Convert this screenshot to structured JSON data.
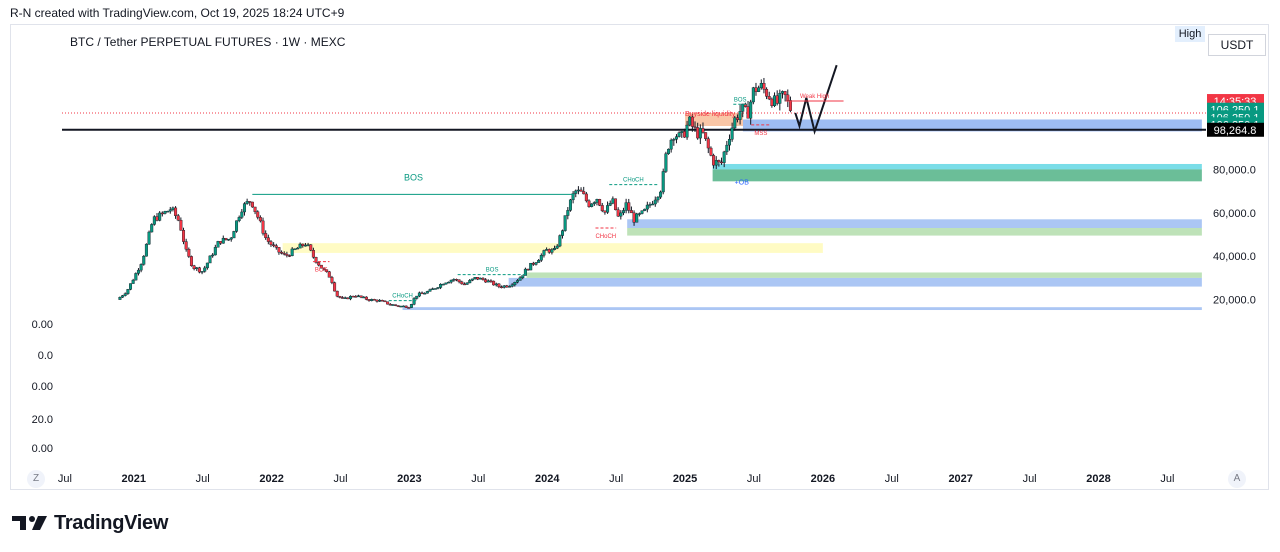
{
  "header": {
    "credit": "R-N created with TradingView.com, Oct 19, 2025 18:24 UTC+9"
  },
  "chart_title": "BTC / Tether PERPETUAL FUTURES · 1W · MEXC",
  "badges": {
    "high": "High",
    "currency": "USDT"
  },
  "brand": {
    "name": "TradingView"
  },
  "corner_buttons": {
    "left": "Z",
    "right": "A"
  },
  "colors": {
    "up": "#089981",
    "down": "#f23645",
    "wick": "#131722",
    "bos": "#089981",
    "bos_red": "#f23645",
    "zone_blue": "#9bbcf5",
    "zone_green": "#a8d8a0",
    "zone_yellow": "#fff9b0",
    "zone_teal": "#4dd2e0",
    "zone_dkgreen": "#3aa876",
    "zone_orange": "#f7b38a",
    "current_line": "#131722"
  },
  "chart_data": {
    "type": "candlestick",
    "x_ticks": [
      {
        "label": "Jul",
        "t": 2020.5
      },
      {
        "label": "2021",
        "t": 2021.0
      },
      {
        "label": "Jul",
        "t": 2021.5
      },
      {
        "label": "2022",
        "t": 2022.0
      },
      {
        "label": "Jul",
        "t": 2022.5
      },
      {
        "label": "2023",
        "t": 2023.0
      },
      {
        "label": "Jul",
        "t": 2023.5
      },
      {
        "label": "2024",
        "t": 2024.0
      },
      {
        "label": "Jul",
        "t": 2024.5
      },
      {
        "label": "2025",
        "t": 2025.0
      },
      {
        "label": "Jul",
        "t": 2025.5
      },
      {
        "label": "2026",
        "t": 2026.0
      },
      {
        "label": "Jul",
        "t": 2026.5
      },
      {
        "label": "2027",
        "t": 2027.0
      },
      {
        "label": "Jul",
        "t": 2027.5
      },
      {
        "label": "2028",
        "t": 2028.0
      },
      {
        "label": "Jul",
        "t": 2028.5
      }
    ],
    "y_ticks": [
      {
        "label": "80,000.0",
        "v": 80000
      },
      {
        "label": "60,000.0",
        "v": 60000
      },
      {
        "label": "40,000.0",
        "v": 40000
      },
      {
        "label": "20,000.0",
        "v": 20000
      }
    ],
    "left_labels": [
      "0.00",
      "0.0",
      "0.00",
      "20.0",
      "0.00"
    ],
    "price_tags": [
      {
        "label": "14:35:33",
        "color": "#f23645",
        "v": 111500
      },
      {
        "label": "106,250.1",
        "color": "#089981",
        "v": 107500
      },
      {
        "label": "106,250.1",
        "color": "#089981",
        "v": 104000
      },
      {
        "label": "106,250.1",
        "color": "#089981",
        "v": 100800
      },
      {
        "label": "98,264.8",
        "color": "#000000",
        "v": 98264.8
      }
    ],
    "price_path": [
      [
        2020.88,
        20000
      ],
      [
        2020.95,
        24000
      ],
      [
        2021.0,
        30000
      ],
      [
        2021.06,
        38000
      ],
      [
        2021.1,
        47000
      ],
      [
        2021.14,
        57000
      ],
      [
        2021.2,
        59000
      ],
      [
        2021.27,
        62000
      ],
      [
        2021.33,
        56000
      ],
      [
        2021.38,
        42000
      ],
      [
        2021.43,
        35000
      ],
      [
        2021.5,
        33000
      ],
      [
        2021.56,
        40000
      ],
      [
        2021.62,
        47000
      ],
      [
        2021.7,
        48000
      ],
      [
        2021.78,
        62000
      ],
      [
        2021.85,
        66000
      ],
      [
        2021.9,
        58000
      ],
      [
        2021.96,
        48000
      ],
      [
        2022.03,
        43000
      ],
      [
        2022.1,
        40000
      ],
      [
        2022.17,
        43000
      ],
      [
        2022.25,
        46000
      ],
      [
        2022.3,
        40000
      ],
      [
        2022.37,
        34000
      ],
      [
        2022.43,
        30000
      ],
      [
        2022.47,
        22000
      ],
      [
        2022.52,
        20000
      ],
      [
        2022.6,
        22000
      ],
      [
        2022.7,
        20000
      ],
      [
        2022.78,
        19500
      ],
      [
        2022.85,
        18000
      ],
      [
        2022.92,
        17000
      ],
      [
        2023.0,
        16800
      ],
      [
        2023.05,
        22000
      ],
      [
        2023.15,
        24000
      ],
      [
        2023.25,
        28000
      ],
      [
        2023.32,
        29500
      ],
      [
        2023.4,
        27000
      ],
      [
        2023.48,
        30000
      ],
      [
        2023.55,
        29000
      ],
      [
        2023.65,
        26000
      ],
      [
        2023.72,
        26500
      ],
      [
        2023.8,
        30000
      ],
      [
        2023.85,
        34000
      ],
      [
        2023.92,
        38000
      ],
      [
        2024.0,
        43000
      ],
      [
        2024.05,
        42000
      ],
      [
        2024.1,
        50000
      ],
      [
        2024.15,
        62000
      ],
      [
        2024.2,
        70000
      ],
      [
        2024.25,
        69000
      ],
      [
        2024.3,
        64000
      ],
      [
        2024.36,
        67000
      ],
      [
        2024.42,
        60000
      ],
      [
        2024.47,
        66000
      ],
      [
        2024.52,
        57000
      ],
      [
        2024.57,
        64000
      ],
      [
        2024.63,
        57000
      ],
      [
        2024.7,
        60000
      ],
      [
        2024.78,
        67000
      ],
      [
        2024.83,
        72000
      ],
      [
        2024.87,
        90000
      ],
      [
        2024.92,
        97000
      ],
      [
        2024.97,
        94000
      ],
      [
        2025.03,
        102000
      ],
      [
        2025.08,
        97000
      ],
      [
        2025.13,
        96000
      ],
      [
        2025.2,
        84000
      ],
      [
        2025.26,
        82000
      ],
      [
        2025.31,
        94000
      ],
      [
        2025.36,
        103000
      ],
      [
        2025.41,
        108000
      ],
      [
        2025.45,
        105000
      ],
      [
        2025.5,
        117000
      ],
      [
        2025.55,
        118000
      ],
      [
        2025.6,
        115000
      ],
      [
        2025.66,
        110000
      ],
      [
        2025.72,
        114000
      ],
      [
        2025.78,
        106000
      ]
    ],
    "projection": [
      [
        2025.8,
        106000
      ],
      [
        2025.83,
        100000
      ],
      [
        2025.88,
        113000
      ],
      [
        2025.94,
        97500
      ],
      [
        2026.1,
        128000
      ]
    ],
    "zones": [
      {
        "t0": 2025.42,
        "t1": 2028.75,
        "v0": 97500,
        "v1": 103000,
        "color": "#7ea7ee"
      },
      {
        "t0": 2025.2,
        "t1": 2028.75,
        "v0": 80000,
        "v1": 82500,
        "color": "#4dd2e0"
      },
      {
        "t0": 2025.2,
        "t1": 2028.75,
        "v0": 74500,
        "v1": 80000,
        "color": "#3aa876"
      },
      {
        "t0": 2024.58,
        "t1": 2028.75,
        "v0": 53000,
        "v1": 57000,
        "color": "#8fb3f0"
      },
      {
        "t0": 2024.58,
        "t1": 2028.75,
        "v0": 49500,
        "v1": 53000,
        "color": "#a8d8a0"
      },
      {
        "t0": 2022.08,
        "t1": 2026.0,
        "v0": 41500,
        "v1": 46000,
        "color": "#fff9b0"
      },
      {
        "t0": 2023.85,
        "t1": 2028.75,
        "v0": 30000,
        "v1": 32500,
        "color": "#a8d8a0"
      },
      {
        "t0": 2023.72,
        "t1": 2028.75,
        "v0": 26000,
        "v1": 30000,
        "color": "#8fb3f0"
      },
      {
        "t0": 2022.95,
        "t1": 2028.75,
        "v0": 15200,
        "v1": 16500,
        "color": "#8fb3f0"
      },
      {
        "t0": 2025.0,
        "t1": 2025.42,
        "v0": 100000,
        "v1": 106000,
        "color": "#f7b38a"
      }
    ],
    "levels": [
      {
        "t0": 2021.86,
        "t1": 2024.2,
        "v": 68500,
        "color": "#089981",
        "label": "BOS",
        "dash": false
      },
      {
        "t0": 2025.73,
        "t1": 2026.15,
        "v": 111500,
        "color": "#f23645",
        "label": "Weak High",
        "dash": false
      },
      {
        "t0": 2023.35,
        "t1": 2023.85,
        "v": 31500,
        "color": "#089981",
        "label": "BOS",
        "dash": true
      },
      {
        "t0": 2022.85,
        "t1": 2023.05,
        "v": 19500,
        "color": "#089981",
        "label": "CHoCH",
        "dash": true
      },
      {
        "t0": 2024.45,
        "t1": 2024.8,
        "v": 73000,
        "color": "#089981",
        "label": "CHoCH",
        "dash": true
      },
      {
        "t0": 2024.35,
        "t1": 2024.5,
        "v": 53000,
        "color": "#f23645",
        "label": "CHoCH",
        "dash": true
      },
      {
        "t0": 2022.3,
        "t1": 2022.42,
        "v": 37500,
        "color": "#f23645",
        "label": "BOS",
        "dash": true
      },
      {
        "t0": 2025.35,
        "t1": 2025.45,
        "v": 110000,
        "color": "#089981",
        "label": "BOS",
        "dash": true
      },
      {
        "t0": 2025.48,
        "t1": 2025.62,
        "v": 100500,
        "color": "#f23645",
        "label": "MSS",
        "dash": true
      }
    ],
    "annotations": [
      {
        "text": "Buyside liquidity",
        "t": 2025.0,
        "v": 104500,
        "color": "#f23645"
      },
      {
        "text": "+OB",
        "t": 2025.36,
        "v": 73000,
        "color": "#2962ff"
      }
    ],
    "ylim": [
      0,
      130000
    ],
    "xlim": [
      2020.45,
      2028.78
    ]
  }
}
